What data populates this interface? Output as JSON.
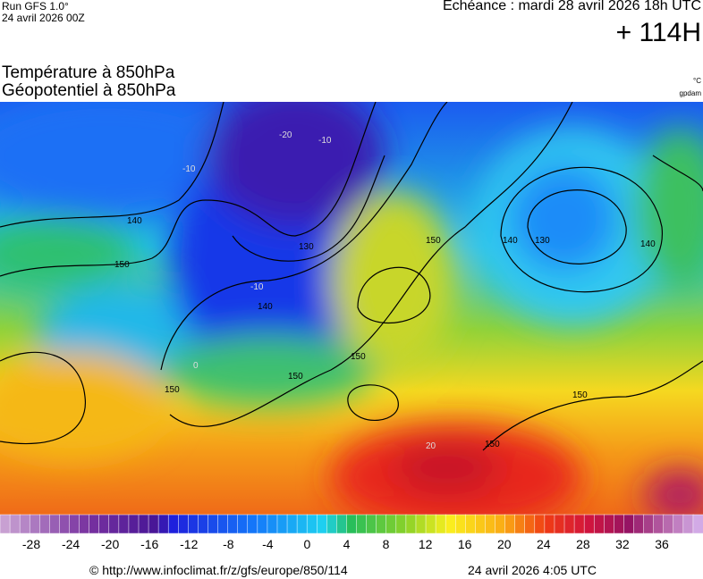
{
  "header": {
    "run": "Run GFS 1.0°",
    "date": "24 avril 2026 00Z",
    "echeance": "Echéance : mardi 28 avril 2026 18h UTC",
    "lead": "+ 114H"
  },
  "titles": {
    "line1": "Température à 850hPa",
    "line2": "Géopotentiel à 850hPa",
    "unit_temperature": "°C",
    "unit_geopotential": "gpdam"
  },
  "contour_labels": [
    "140",
    "150",
    "-10",
    "-20",
    "-10",
    "130",
    "140",
    "-10",
    "150",
    "140",
    "130",
    "140",
    "150",
    "150",
    "150",
    "150",
    "150",
    "20",
    "0"
  ],
  "colorbar": {
    "ticks": [
      -28,
      -24,
      -20,
      -16,
      -12,
      -8,
      -4,
      0,
      4,
      8,
      12,
      16,
      20,
      24,
      28,
      32,
      36
    ]
  },
  "footer": {
    "url": "© http://www.infoclimat.fr/z/gfs/europe/850/114",
    "time": "24 avril 2026  4:05 UTC"
  }
}
